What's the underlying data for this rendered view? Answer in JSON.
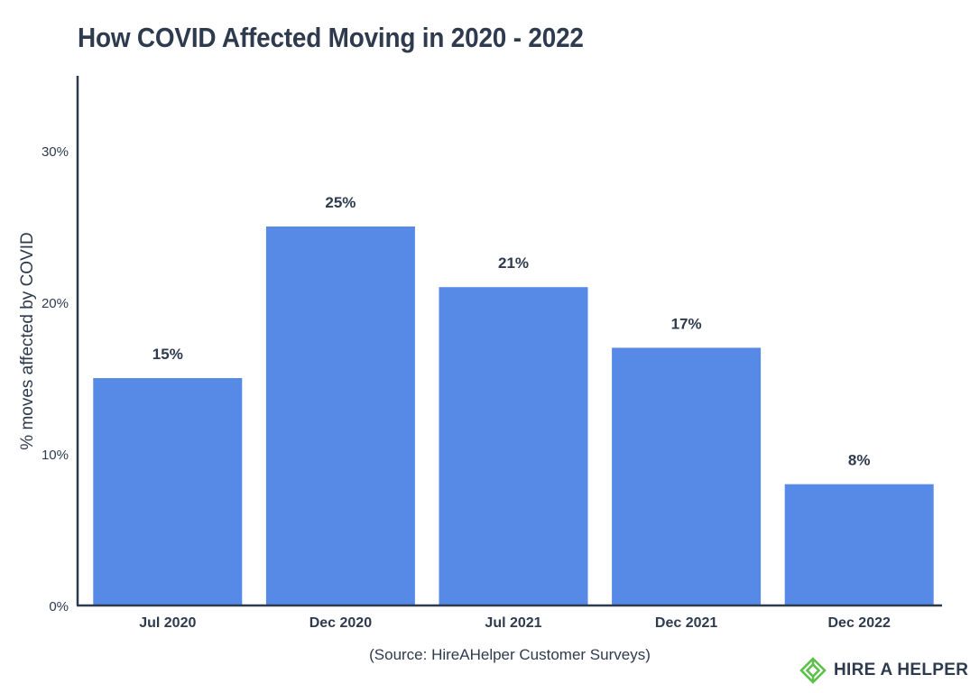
{
  "chart_data": {
    "type": "bar",
    "title": "How COVID Affected Moving in 2020 - 2022",
    "categories": [
      "Jul 2020",
      "Dec 2020",
      "Jul 2021",
      "Dec 2021",
      "Dec 2022"
    ],
    "values": [
      15,
      25,
      21,
      17,
      8
    ],
    "value_labels": [
      "15%",
      "25%",
      "21%",
      "17%",
      "8%"
    ],
    "xlabel": "",
    "ylabel": "% moves affected by COVID",
    "ylim": [
      0,
      35
    ],
    "yticks": [
      0,
      10,
      20,
      30
    ],
    "ytick_labels": [
      "0%",
      "10%",
      "20%",
      "30%"
    ],
    "grid": false,
    "bar_color": "#568ae6"
  },
  "source_note": "(Source: HireAHelper Customer Surveys)",
  "brand": {
    "name": "HIRE A HELPER",
    "icon": "diamond-logo-icon",
    "color": "#5cc04a"
  }
}
